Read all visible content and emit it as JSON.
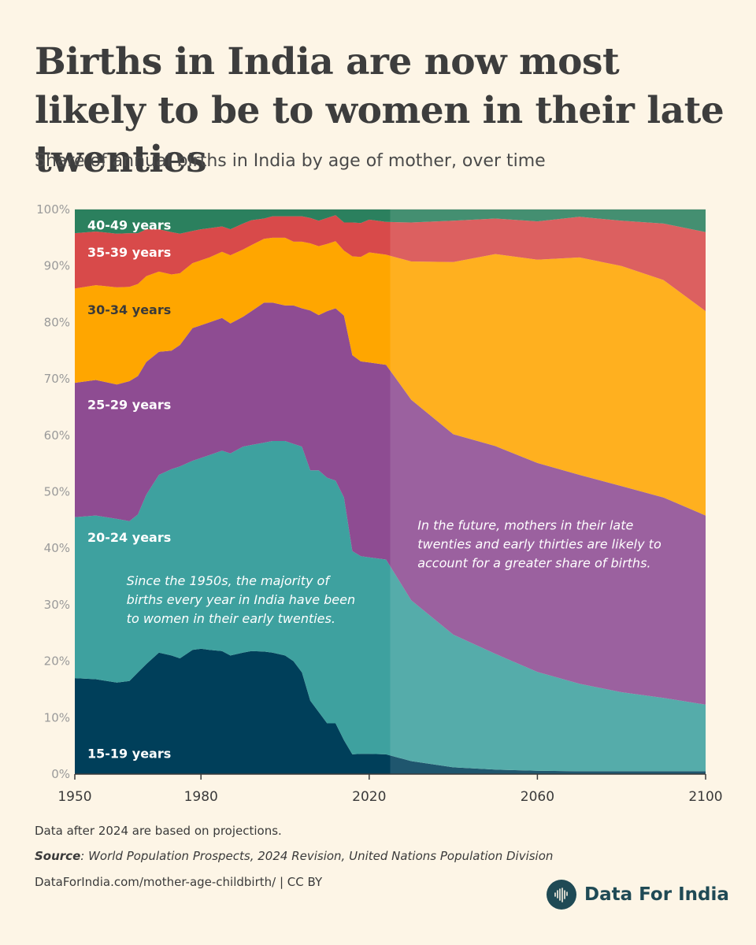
{
  "header": {
    "title": "Births in India are now most likely to be to women in their late twenties",
    "subtitle": "Share of annual births in India by age of mother, over time"
  },
  "colors": {
    "age_15_19": "#003f5a",
    "age_20_24": "#3ea19f",
    "age_25_29": "#8e4c92",
    "age_30_34": "#ffa600",
    "age_35_39": "#d84a4a",
    "age_40_49": "#2b805e",
    "background": "#fdf5e6",
    "brand": "#1f4a55"
  },
  "chart_data": {
    "type": "area",
    "stacked": true,
    "x": [
      1950,
      1955,
      1960,
      1963,
      1965,
      1967,
      1970,
      1973,
      1975,
      1978,
      1980,
      1982,
      1985,
      1987,
      1990,
      1992,
      1995,
      1997,
      2000,
      2002,
      2004,
      2006,
      2008,
      2010,
      2012,
      2014,
      2016,
      2018,
      2020,
      2024,
      2030,
      2040,
      2050,
      2060,
      2070,
      2080,
      2090,
      2100
    ],
    "series": [
      {
        "name": "15-19 years",
        "color_key": "age_15_19",
        "values": [
          17.0,
          16.8,
          16.2,
          16.5,
          18.0,
          19.5,
          21.5,
          21.0,
          20.5,
          22.0,
          22.2,
          22.0,
          21.8,
          21.0,
          21.5,
          21.8,
          21.7,
          21.5,
          21.0,
          20.0,
          18.0,
          13.0,
          11.0,
          9.0,
          9.0,
          6.0,
          3.5,
          3.6,
          3.6,
          3.5,
          2.3,
          1.2,
          0.8,
          0.6,
          0.5,
          0.5,
          0.5,
          0.5
        ]
      },
      {
        "name": "20-24 years",
        "color_key": "age_20_24",
        "values": [
          28.5,
          29.0,
          29.0,
          28.3,
          28.0,
          30.0,
          31.5,
          33.0,
          34.0,
          33.5,
          33.8,
          34.5,
          35.5,
          35.8,
          36.5,
          36.5,
          37.0,
          37.5,
          38.0,
          38.5,
          40.0,
          40.8,
          42.8,
          43.5,
          43.0,
          43.0,
          36.0,
          35.0,
          34.8,
          34.5,
          28.5,
          23.5,
          20.5,
          17.5,
          15.5,
          14.0,
          13.0,
          11.8
        ]
      },
      {
        "name": "25-29 years",
        "color_key": "age_25_29",
        "values": [
          23.8,
          24.0,
          23.8,
          24.8,
          24.5,
          23.5,
          21.8,
          21.0,
          21.5,
          23.5,
          23.5,
          23.5,
          23.5,
          23.0,
          23.0,
          23.7,
          24.8,
          24.5,
          24.0,
          24.5,
          24.5,
          28.3,
          27.5,
          29.5,
          30.5,
          32.2,
          34.7,
          34.5,
          34.5,
          34.5,
          35.5,
          35.5,
          36.8,
          37.0,
          37.0,
          36.5,
          35.5,
          33.5
        ]
      },
      {
        "name": "30-34 years",
        "color_key": "age_30_34",
        "values": [
          16.7,
          16.8,
          17.2,
          16.7,
          16.3,
          15.2,
          14.2,
          13.5,
          12.7,
          11.5,
          11.5,
          11.5,
          11.7,
          12.1,
          11.9,
          11.7,
          11.3,
          11.5,
          12.0,
          11.3,
          11.8,
          11.9,
          12.2,
          11.9,
          11.9,
          11.5,
          17.5,
          18.5,
          19.5,
          19.5,
          24.5,
          30.5,
          34.0,
          36.0,
          38.5,
          39.0,
          38.5,
          36.2
        ]
      },
      {
        "name": "35-39 years",
        "color_key": "age_35_39",
        "values": [
          9.8,
          9.5,
          9.5,
          9.5,
          9.0,
          8.3,
          7.5,
          7.5,
          7.0,
          5.7,
          5.5,
          5.2,
          4.5,
          4.6,
          4.6,
          4.4,
          3.6,
          3.8,
          3.8,
          4.5,
          4.5,
          4.5,
          4.5,
          4.6,
          4.6,
          5.0,
          6.0,
          6.0,
          5.8,
          5.8,
          6.9,
          7.3,
          6.3,
          6.8,
          7.2,
          8.0,
          10.0,
          14.0
        ]
      },
      {
        "name": "40-49 years",
        "color_key": "age_40_49",
        "values": [
          4.2,
          3.9,
          4.3,
          4.2,
          4.2,
          3.5,
          3.5,
          4.0,
          4.3,
          3.8,
          3.5,
          3.3,
          3.0,
          3.5,
          2.5,
          1.9,
          1.6,
          1.2,
          1.2,
          1.2,
          1.2,
          1.5,
          2.0,
          1.5,
          1.0,
          2.3,
          2.3,
          2.4,
          2.3,
          2.2,
          2.3,
          2.0,
          2.6,
          2.1,
          1.3,
          2.0,
          2.5,
          4.0
        ]
      }
    ],
    "xlim": [
      1950,
      2100
    ],
    "ylim": [
      0,
      100
    ],
    "x_ticks": [
      "1950",
      "1980",
      "2020",
      "2060",
      "2100"
    ],
    "x_tick_values": [
      1950,
      1980,
      2020,
      2060,
      2100
    ],
    "y_ticks": [
      "0%",
      "10%",
      "20%",
      "30%",
      "40%",
      "50%",
      "60%",
      "70%",
      "80%",
      "90%",
      "100%"
    ],
    "y_tick_values": [
      0,
      10,
      20,
      30,
      40,
      50,
      60,
      70,
      80,
      90,
      100
    ],
    "projection_start": 2025,
    "series_labels": [
      {
        "text": "40-49 years",
        "x": 1953,
        "y": 97.3
      },
      {
        "text": "35-39 years",
        "x": 1953,
        "y": 92.5
      },
      {
        "text": "30-34 years",
        "x": 1953,
        "y": 82.3
      },
      {
        "text": "25-29 years",
        "x": 1953,
        "y": 65.5
      },
      {
        "text": "20-24 years",
        "x": 1953,
        "y": 42.0
      },
      {
        "text": "15-19 years",
        "x": 1953,
        "y": 3.7
      }
    ],
    "annotations": [
      {
        "lines": [
          "Since the 1950s, the majority of",
          "births every year in India have been",
          "to women in their early twenties."
        ],
        "x": 1962.3,
        "y": 33.5
      },
      {
        "lines": [
          "In the future, mothers in their late",
          "twenties and early thirties are likely to",
          "account for a greater share of births."
        ],
        "x": 2031.5,
        "y": 43.3
      }
    ]
  },
  "footer": {
    "note": "Data after 2024 are based on projections.",
    "source_label": "Source",
    "source_text": ": World Population Prospects, 2024 Revision, United Nations Population Division",
    "url": "DataForIndia.com/mother-age-childbirth/  |  CC BY",
    "brand": "Data For India"
  }
}
